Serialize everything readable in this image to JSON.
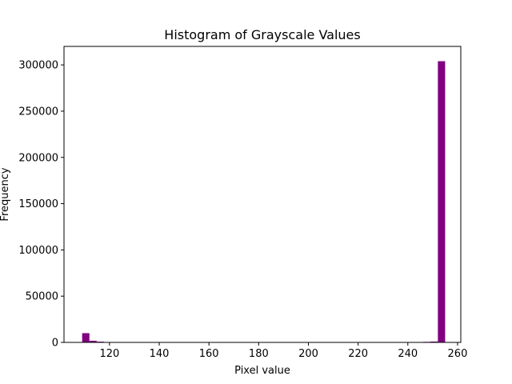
{
  "chart_data": {
    "type": "bar",
    "title": "Histogram of Grayscale Values",
    "xlabel": "Pixel value",
    "ylabel": "Frequency",
    "xlim": [
      101.7,
      261.3
    ],
    "ylim": [
      0,
      320000
    ],
    "xticks": [
      120,
      140,
      160,
      180,
      200,
      220,
      240,
      260
    ],
    "xtick_labels": [
      "120",
      "140",
      "160",
      "180",
      "200",
      "220",
      "240",
      "260"
    ],
    "yticks": [
      0,
      50000,
      100000,
      150000,
      200000,
      250000,
      300000
    ],
    "ytick_labels": [
      "0",
      "50000",
      "100000",
      "150000",
      "200000",
      "250000",
      "300000"
    ],
    "bar_color": "#800080",
    "bin_width": 2.92,
    "bins": [
      {
        "x0": 109.0,
        "value": 10000
      },
      {
        "x0": 111.92,
        "value": 1800
      },
      {
        "x0": 114.84,
        "value": 800
      },
      {
        "x0": 117.76,
        "value": 200
      },
      {
        "x0": 243.32,
        "value": 400
      },
      {
        "x0": 246.24,
        "value": 600
      },
      {
        "x0": 249.16,
        "value": 900
      },
      {
        "x0": 252.08,
        "value": 304000
      }
    ],
    "grid": false,
    "legend": "none"
  }
}
